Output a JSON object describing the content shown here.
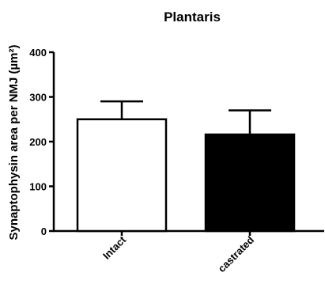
{
  "chart_data": {
    "type": "bar",
    "title": "Plantaris",
    "ylabel": "Synaptophysin area per NMJ (µm²)",
    "xlabel": "",
    "categories": [
      "Intact",
      "castrated"
    ],
    "values": [
      250,
      216
    ],
    "error_bars": [
      40,
      54
    ],
    "ylim": [
      0,
      400
    ],
    "yticks": [
      "0",
      "100",
      "200",
      "300",
      "400"
    ],
    "bar_fill_colors": [
      "#ffffff",
      "#000000"
    ],
    "bar_stroke_color": "#000000",
    "grid": false,
    "legend": "none"
  }
}
